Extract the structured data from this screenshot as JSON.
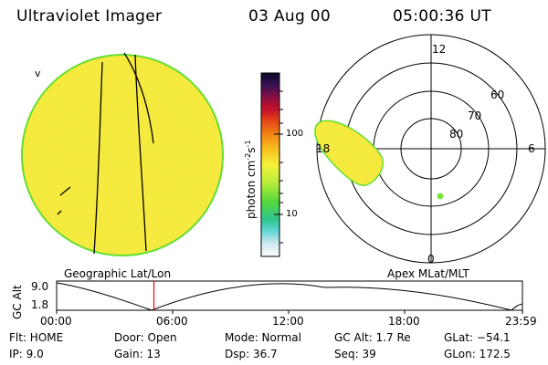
{
  "header": {
    "instrument": "Ultraviolet Imager",
    "date": "03 Aug 00",
    "time": "05:00:36 UT"
  },
  "left_panel": {
    "label": "Geographic Lat/Lon",
    "corner_mark": "v"
  },
  "right_panel": {
    "label": "Apex MLat/MLT",
    "mlat_labels": [
      "60",
      "70",
      "80"
    ],
    "mlt_labels": [
      "12",
      "18",
      "6",
      "0"
    ]
  },
  "colorbar": {
    "label": "photon cm",
    "exp1": "-2",
    "mid": "s",
    "exp2": "-1",
    "ticks": [
      "100",
      "10"
    ]
  },
  "altitude_plot": {
    "ylabel": "GC Alt",
    "y_ticks": [
      "9.0",
      "1.8"
    ],
    "x_ticks": [
      "00:00",
      "06:00",
      "12:00",
      "18:00",
      "23:59"
    ],
    "current_time_hours": 5.01
  },
  "info": {
    "flt": "Flt: HOME",
    "ip": "IP:  9.0",
    "door": "Door: Open",
    "gain": "Gain: 13",
    "mode": "Mode: Normal",
    "dsp": "Dsp:    36.7",
    "gcalt": "GC Alt: 1.7 Re",
    "seq": "Seq: 39",
    "glat": "GLat: −54.1",
    "glon": "GLon: 172.5"
  },
  "colors": {
    "disk_fill": "#f4ea3a",
    "disk_edge": "#66dd33",
    "time_marker": "#ff0000"
  }
}
